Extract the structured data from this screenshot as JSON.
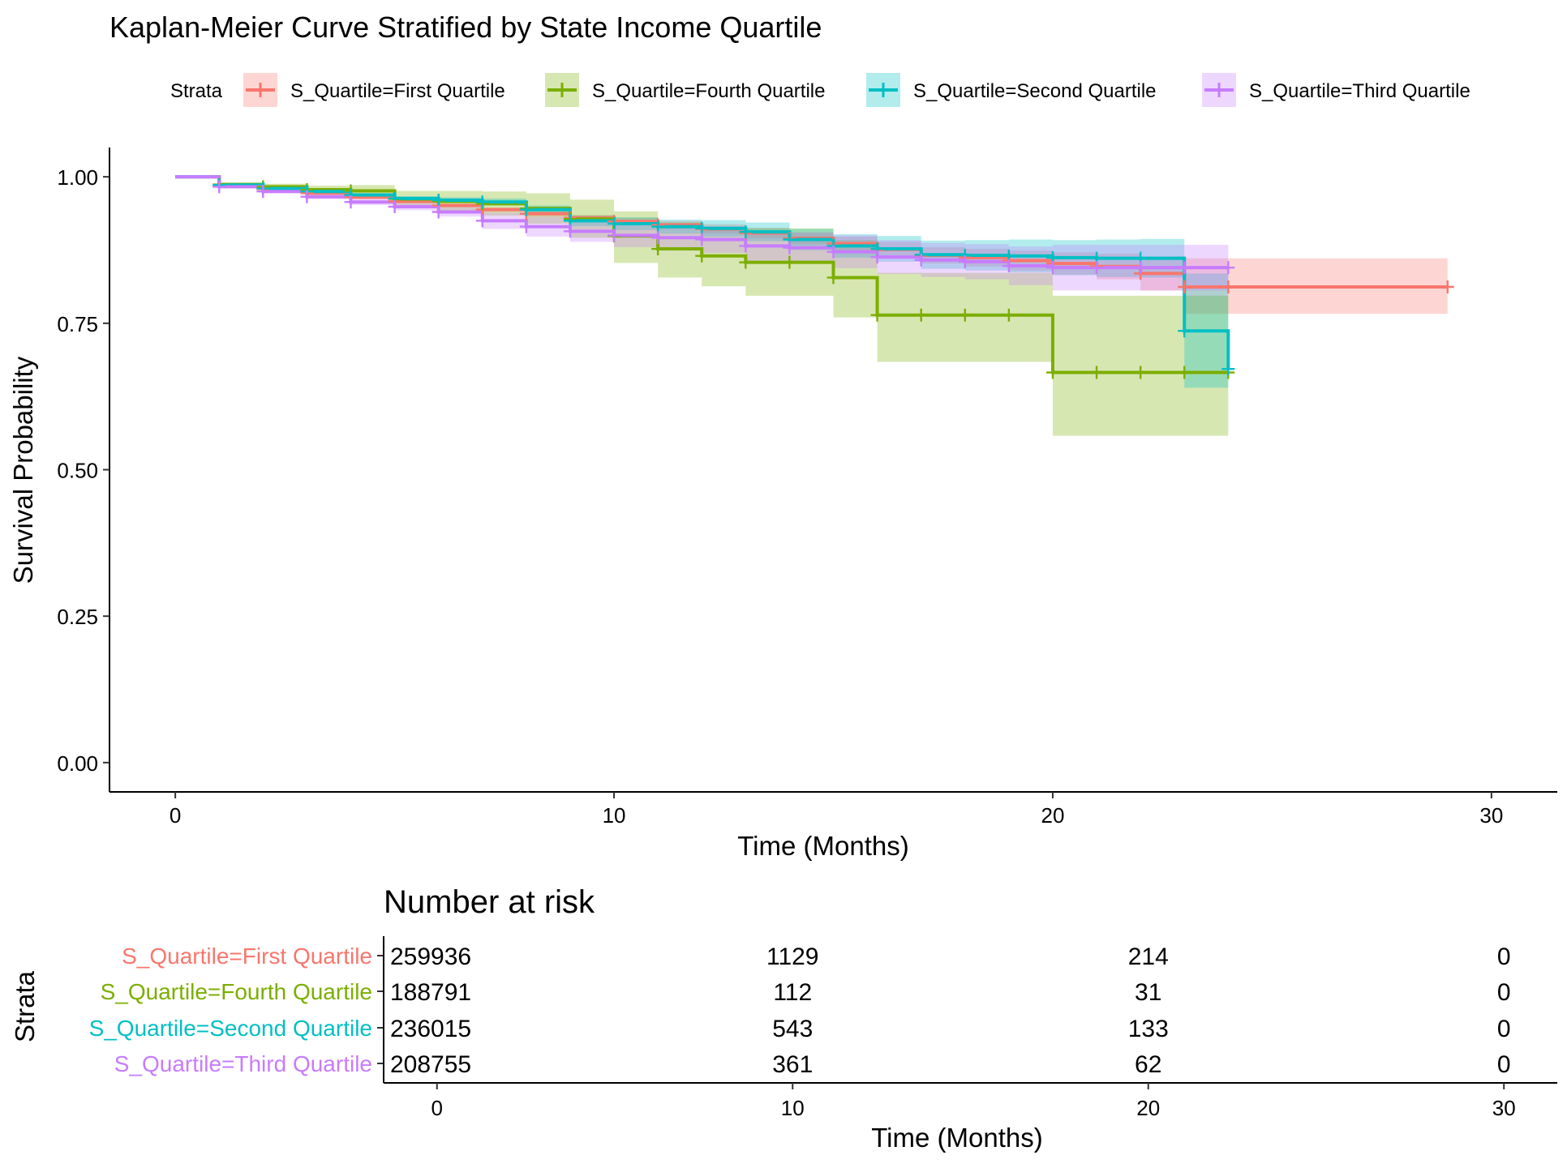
{
  "chart_data": [
    {
      "type": "line",
      "subtype": "kaplan-meier-step",
      "title": "Kaplan-Meier Curve Stratified by State Income Quartile",
      "xlabel": "Time (Months)",
      "ylabel": "Survival Probability",
      "xlim": [
        -1.5,
        31.5
      ],
      "ylim": [
        -0.05,
        1.05
      ],
      "xticks": [
        0,
        10,
        20,
        30
      ],
      "yticks": [
        0,
        0.25,
        0.5,
        0.75,
        1
      ],
      "ytick_labels": [
        "0.00",
        "0.25",
        "0.50",
        "0.75",
        "1.00"
      ],
      "grid": false,
      "legend": {
        "title": "Strata",
        "placement": "top",
        "entries": [
          "S_Quartile=First Quartile",
          "S_Quartile=Fourth Quartile",
          "S_Quartile=Second Quartile",
          "S_Quartile=Third Quartile"
        ]
      },
      "series": [
        {
          "name": "S_Quartile=First Quartile",
          "color": "#F8766D",
          "x": [
            0,
            1,
            2,
            3,
            4,
            5,
            6,
            7,
            8,
            9,
            10,
            11,
            12,
            13,
            14,
            15,
            16,
            17,
            18,
            19,
            20,
            21,
            22,
            23,
            24,
            29
          ],
          "y": [
            1.0,
            0.985,
            0.979,
            0.972,
            0.965,
            0.958,
            0.951,
            0.944,
            0.937,
            0.93,
            0.924,
            0.918,
            0.911,
            0.904,
            0.895,
            0.886,
            0.876,
            0.866,
            0.862,
            0.857,
            0.852,
            0.847,
            0.835,
            0.812,
            0.812,
            0.812
          ],
          "lower": [
            1.0,
            0.984,
            0.977,
            0.97,
            0.962,
            0.955,
            0.948,
            0.94,
            0.932,
            0.925,
            0.918,
            0.911,
            0.903,
            0.895,
            0.885,
            0.874,
            0.863,
            0.852,
            0.847,
            0.84,
            0.833,
            0.825,
            0.806,
            0.766,
            0.766,
            0.766
          ],
          "upper": [
            1.0,
            0.986,
            0.981,
            0.974,
            0.968,
            0.961,
            0.954,
            0.948,
            0.942,
            0.935,
            0.93,
            0.925,
            0.919,
            0.913,
            0.905,
            0.898,
            0.889,
            0.88,
            0.877,
            0.874,
            0.871,
            0.869,
            0.864,
            0.861,
            0.861,
            0.861
          ],
          "censor_x": [
            1,
            2,
            3,
            4,
            5,
            6,
            7,
            8,
            9,
            10,
            11,
            12,
            13,
            14,
            15,
            16,
            17,
            18,
            19,
            20,
            21,
            22,
            23,
            24,
            29
          ]
        },
        {
          "name": "S_Quartile=Fourth Quartile",
          "color": "#7CAE00",
          "x": [
            0,
            1,
            2,
            3,
            4,
            5,
            6,
            7,
            8,
            9,
            10,
            11,
            12,
            13,
            14,
            15,
            16,
            17,
            18,
            19,
            20,
            21,
            22,
            23,
            24
          ],
          "y": [
            1.0,
            0.987,
            0.983,
            0.978,
            0.976,
            0.962,
            0.958,
            0.954,
            0.946,
            0.928,
            0.899,
            0.877,
            0.865,
            0.854,
            0.854,
            0.828,
            0.764,
            0.764,
            0.764,
            0.764,
            0.666,
            0.666,
            0.666,
            0.666,
            0.666
          ],
          "lower": [
            1.0,
            0.983,
            0.978,
            0.971,
            0.966,
            0.948,
            0.941,
            0.934,
            0.92,
            0.896,
            0.853,
            0.828,
            0.813,
            0.797,
            0.797,
            0.76,
            0.684,
            0.684,
            0.684,
            0.684,
            0.558,
            0.558,
            0.558,
            0.558,
            0.558
          ],
          "upper": [
            1.0,
            0.99,
            0.988,
            0.985,
            0.986,
            0.976,
            0.976,
            0.975,
            0.972,
            0.961,
            0.941,
            0.922,
            0.915,
            0.912,
            0.912,
            0.892,
            0.836,
            0.836,
            0.836,
            0.836,
            0.797,
            0.797,
            0.797,
            0.797,
            0.797
          ],
          "censor_x": [
            1,
            2,
            3,
            4,
            5,
            6,
            7,
            8,
            9,
            10,
            11,
            12,
            13,
            14,
            15,
            16,
            17,
            18,
            19,
            20,
            21,
            22,
            23,
            24
          ]
        },
        {
          "name": "S_Quartile=Second Quartile",
          "color": "#00BFC4",
          "x": [
            0,
            1,
            2,
            3,
            4,
            5,
            6,
            7,
            8,
            9,
            10,
            11,
            12,
            13,
            14,
            15,
            16,
            17,
            18,
            19,
            20,
            21,
            22,
            23,
            24
          ],
          "y": [
            1.0,
            0.986,
            0.98,
            0.975,
            0.969,
            0.963,
            0.96,
            0.957,
            0.944,
            0.925,
            0.92,
            0.915,
            0.912,
            0.906,
            0.893,
            0.882,
            0.877,
            0.867,
            0.866,
            0.865,
            0.862,
            0.861,
            0.861,
            0.737,
            0.672
          ],
          "lower": [
            1.0,
            0.985,
            0.978,
            0.972,
            0.966,
            0.959,
            0.955,
            0.951,
            0.937,
            0.916,
            0.909,
            0.903,
            0.898,
            0.89,
            0.875,
            0.862,
            0.855,
            0.843,
            0.84,
            0.837,
            0.832,
            0.829,
            0.828,
            0.64,
            0.64
          ],
          "upper": [
            1.0,
            0.987,
            0.982,
            0.978,
            0.972,
            0.967,
            0.965,
            0.963,
            0.951,
            0.934,
            0.931,
            0.927,
            0.926,
            0.922,
            0.911,
            0.902,
            0.899,
            0.891,
            0.892,
            0.893,
            0.892,
            0.893,
            0.894,
            0.835,
            0.835
          ],
          "censor_x": [
            1,
            2,
            3,
            4,
            5,
            6,
            7,
            8,
            9,
            10,
            11,
            12,
            13,
            14,
            15,
            16,
            17,
            18,
            19,
            20,
            21,
            22,
            23,
            24
          ]
        },
        {
          "name": "S_Quartile=Third Quartile",
          "color": "#C77CFF",
          "x": [
            0,
            1,
            2,
            3,
            4,
            5,
            6,
            7,
            8,
            9,
            10,
            11,
            12,
            13,
            14,
            15,
            16,
            17,
            18,
            19,
            20,
            21,
            22,
            23,
            24
          ],
          "y": [
            1.0,
            0.983,
            0.975,
            0.966,
            0.957,
            0.949,
            0.94,
            0.925,
            0.915,
            0.907,
            0.9,
            0.896,
            0.893,
            0.882,
            0.879,
            0.872,
            0.863,
            0.858,
            0.855,
            0.848,
            0.845,
            0.845,
            0.845,
            0.845,
            0.845
          ],
          "lower": [
            1.0,
            0.981,
            0.972,
            0.962,
            0.952,
            0.943,
            0.932,
            0.911,
            0.898,
            0.889,
            0.88,
            0.874,
            0.87,
            0.857,
            0.853,
            0.844,
            0.834,
            0.829,
            0.825,
            0.815,
            0.806,
            0.806,
            0.806,
            0.806,
            0.806
          ],
          "upper": [
            1.0,
            0.985,
            0.978,
            0.97,
            0.962,
            0.955,
            0.948,
            0.939,
            0.932,
            0.925,
            0.92,
            0.918,
            0.916,
            0.907,
            0.905,
            0.9,
            0.892,
            0.887,
            0.885,
            0.881,
            0.884,
            0.884,
            0.884,
            0.884,
            0.884
          ],
          "censor_x": [
            1,
            2,
            3,
            4,
            5,
            6,
            7,
            8,
            9,
            10,
            11,
            12,
            13,
            14,
            15,
            16,
            17,
            18,
            19,
            20,
            21,
            22,
            23,
            24
          ]
        }
      ]
    },
    {
      "type": "table",
      "title": "Number at risk",
      "xlabel": "Time (Months)",
      "ylabel": "Strata",
      "xticks": [
        0,
        10,
        20,
        30
      ],
      "rows": [
        {
          "label": "S_Quartile=First Quartile",
          "color": "#F8766D",
          "values": [
            "259936",
            "1129",
            "214",
            "0"
          ]
        },
        {
          "label": "S_Quartile=Fourth Quartile",
          "color": "#7CAE00",
          "values": [
            "188791",
            "112",
            "31",
            "0"
          ]
        },
        {
          "label": "S_Quartile=Second Quartile",
          "color": "#00BFC4",
          "values": [
            "236015",
            "543",
            "133",
            "0"
          ]
        },
        {
          "label": "S_Quartile=Third Quartile",
          "color": "#C77CFF",
          "values": [
            "208755",
            "361",
            "62",
            "0"
          ]
        }
      ]
    }
  ]
}
